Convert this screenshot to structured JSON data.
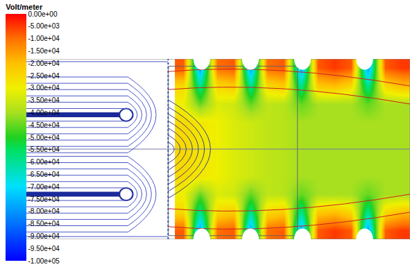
{
  "chart_data": {
    "type": "heatmap",
    "colorbar_title": "Volt/meter",
    "tick_labels": false,
    "xlim": [
      0,
      24
    ],
    "ylim": [
      0,
      10
    ],
    "x": [
      10.5,
      11.5,
      12.5,
      13.5,
      14.5,
      15.5,
      16.5,
      17.5,
      18.5,
      19.5,
      20.5,
      21.5,
      22.5,
      23.5
    ],
    "y": [
      0.5,
      1.5,
      2.5,
      3.5,
      4.5,
      5.5,
      6.5,
      7.5,
      8.5,
      9.5
    ],
    "z": [
      [
        -8000,
        -80000,
        -10000,
        -8000,
        -80000,
        -10000,
        -8000,
        -80000,
        -8000,
        -5000,
        -8000,
        -80000,
        -8000,
        -5000
      ],
      [
        -25000,
        -60000,
        -25000,
        -22000,
        -60000,
        -25000,
        -22000,
        -60000,
        -22000,
        -20000,
        -25000,
        -60000,
        -25000,
        -20000
      ],
      [
        -30000,
        -45000,
        -33000,
        -35000,
        -45000,
        -37000,
        -38000,
        -45000,
        -40000,
        -40000,
        -40000,
        -45000,
        -40000,
        -40000
      ],
      [
        -25000,
        -28000,
        -30000,
        -33000,
        -35000,
        -37000,
        -38000,
        -40000,
        -40000,
        -40000,
        -40000,
        -40000,
        -40000,
        -40000
      ],
      [
        -25000,
        -28000,
        -30000,
        -33000,
        -35000,
        -37000,
        -38000,
        -40000,
        -40000,
        -40000,
        -40000,
        -40000,
        -40000,
        -40000
      ],
      [
        -25000,
        -28000,
        -30000,
        -33000,
        -35000,
        -37000,
        -38000,
        -40000,
        -40000,
        -40000,
        -40000,
        -40000,
        -40000,
        -40000
      ],
      [
        -25000,
        -28000,
        -30000,
        -33000,
        -35000,
        -37000,
        -38000,
        -40000,
        -40000,
        -40000,
        -40000,
        -40000,
        -40000,
        -40000
      ],
      [
        -30000,
        -45000,
        -33000,
        -35000,
        -45000,
        -37000,
        -38000,
        -45000,
        -40000,
        -40000,
        -40000,
        -45000,
        -40000,
        -40000
      ],
      [
        -25000,
        -60000,
        -25000,
        -22000,
        -60000,
        -25000,
        -22000,
        -60000,
        -22000,
        -20000,
        -25000,
        -60000,
        -25000,
        -20000
      ],
      [
        -8000,
        -80000,
        -10000,
        -8000,
        -80000,
        -10000,
        -8000,
        -80000,
        -8000,
        -5000,
        -8000,
        -80000,
        -8000,
        -5000
      ]
    ],
    "zlim": [
      -100000,
      0
    ],
    "zticks": [
      {
        "value": 0,
        "label": "0.00e+00"
      },
      {
        "value": -5000,
        "label": "-5.00e+03"
      },
      {
        "value": -10000,
        "label": "-1.00e+04"
      },
      {
        "value": -15000,
        "label": "-1.50e+04"
      },
      {
        "value": -20000,
        "label": "-2.00e+04"
      },
      {
        "value": -25000,
        "label": "-2.50e+04"
      },
      {
        "value": -30000,
        "label": "-3.00e+04"
      },
      {
        "value": -35000,
        "label": "-3.50e+04"
      },
      {
        "value": -40000,
        "label": "-4.00e+04"
      },
      {
        "value": -45000,
        "label": "-4.50e+04"
      },
      {
        "value": -50000,
        "label": "-5.00e+04"
      },
      {
        "value": -55000,
        "label": "-5.50e+04"
      },
      {
        "value": -60000,
        "label": "-6.00e+04"
      },
      {
        "value": -65000,
        "label": "-6.50e+04"
      },
      {
        "value": -70000,
        "label": "-7.00e+04"
      },
      {
        "value": -75000,
        "label": "-7.50e+04"
      },
      {
        "value": -80000,
        "label": "-8.00e+04"
      },
      {
        "value": -85000,
        "label": "-8.50e+04"
      },
      {
        "value": -90000,
        "label": "-9.00e+04"
      },
      {
        "value": -95000,
        "label": "-9.50e+04"
      },
      {
        "value": -100000,
        "label": "-1.00e+05"
      }
    ]
  }
}
